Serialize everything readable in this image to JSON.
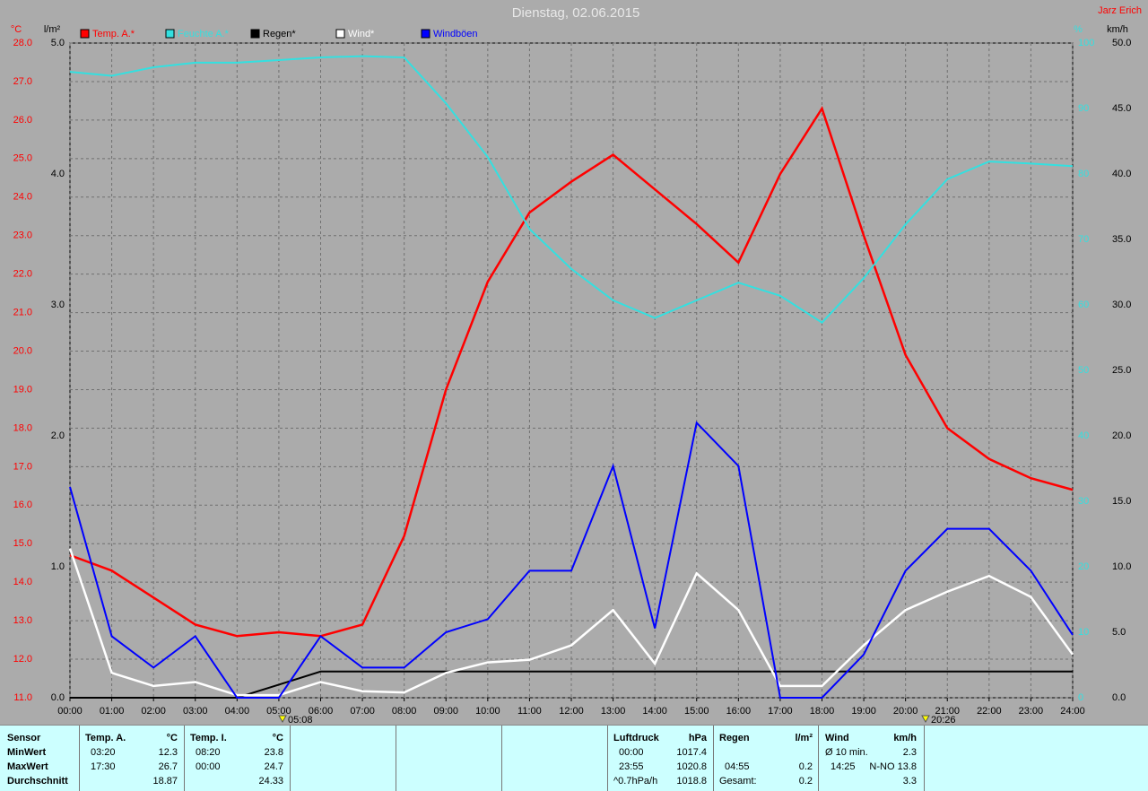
{
  "chart_data": {
    "type": "line",
    "title": "Dienstag, 02.06.2015",
    "author": "Jarz Erich",
    "x": [
      0,
      1,
      2,
      3,
      4,
      5,
      6,
      7,
      8,
      9,
      10,
      11,
      12,
      13,
      14,
      15,
      16,
      17,
      18,
      19,
      20,
      21,
      22,
      23,
      24
    ],
    "xlim": [
      0,
      24
    ],
    "xticks": [
      {
        "value": 0,
        "label": "00:00"
      },
      {
        "value": 1,
        "label": "01:00"
      },
      {
        "value": 2,
        "label": "02:00"
      },
      {
        "value": 3,
        "label": "03:00"
      },
      {
        "value": 4,
        "label": "04:00"
      },
      {
        "value": 5,
        "label": "05:00"
      },
      {
        "value": 6,
        "label": "06:00"
      },
      {
        "value": 7,
        "label": "07:00"
      },
      {
        "value": 8,
        "label": "08:00"
      },
      {
        "value": 9,
        "label": "09:00"
      },
      {
        "value": 10,
        "label": "10:00"
      },
      {
        "value": 11,
        "label": "11:00"
      },
      {
        "value": 12,
        "label": "12:00"
      },
      {
        "value": 13,
        "label": "13:00"
      },
      {
        "value": 14,
        "label": "14:00"
      },
      {
        "value": 15,
        "label": "15:00"
      },
      {
        "value": 16,
        "label": "16:00"
      },
      {
        "value": 17,
        "label": "17:00"
      },
      {
        "value": 18,
        "label": "18:00"
      },
      {
        "value": 19,
        "label": "19:00"
      },
      {
        "value": 20,
        "label": "20:00"
      },
      {
        "value": 21,
        "label": "21:00"
      },
      {
        "value": 22,
        "label": "22:00"
      },
      {
        "value": 23,
        "label": "23:00"
      },
      {
        "value": 24,
        "label": "24:00"
      }
    ],
    "ylabel": "°C",
    "ylim": [
      11,
      28
    ],
    "yticks": [
      {
        "value": 11,
        "label": "11.0"
      },
      {
        "value": 12,
        "label": "12.0"
      },
      {
        "value": 13,
        "label": "13.0"
      },
      {
        "value": 14,
        "label": "14.0"
      },
      {
        "value": 15,
        "label": "15.0"
      },
      {
        "value": 16,
        "label": "16.0"
      },
      {
        "value": 17,
        "label": "17.0"
      },
      {
        "value": 18,
        "label": "18.0"
      },
      {
        "value": 19,
        "label": "19.0"
      },
      {
        "value": 20,
        "label": "20.0"
      },
      {
        "value": 21,
        "label": "21.0"
      },
      {
        "value": 22,
        "label": "22.0"
      },
      {
        "value": 23,
        "label": "23.0"
      },
      {
        "value": 24,
        "label": "24.0"
      },
      {
        "value": 25,
        "label": "25.0"
      },
      {
        "value": 26,
        "label": "26.0"
      },
      {
        "value": 27,
        "label": "27.0"
      },
      {
        "value": 28,
        "label": "28.0"
      }
    ],
    "y2label": "l/m²",
    "y2lim": [
      0,
      5
    ],
    "y2ticks": [
      {
        "value": 0,
        "label": "0.0"
      },
      {
        "value": 1,
        "label": "1.0"
      },
      {
        "value": 2,
        "label": "2.0"
      },
      {
        "value": 3,
        "label": "3.0"
      },
      {
        "value": 4,
        "label": "4.0"
      },
      {
        "value": 5,
        "label": "5.0"
      }
    ],
    "y3label": "%",
    "y3lim": [
      0,
      100
    ],
    "y3ticks": [
      0,
      10,
      20,
      30,
      40,
      50,
      60,
      70,
      80,
      90,
      100
    ],
    "y4label": "km/h",
    "y4lim": [
      0,
      50
    ],
    "y4ticks": [
      {
        "value": 0,
        "label": "0.0"
      },
      {
        "value": 5,
        "label": "5.0"
      },
      {
        "value": 10,
        "label": "10.0"
      },
      {
        "value": 15,
        "label": "15.0"
      },
      {
        "value": 20,
        "label": "20.0"
      },
      {
        "value": 25,
        "label": "25.0"
      },
      {
        "value": 30,
        "label": "30.0"
      },
      {
        "value": 35,
        "label": "35.0"
      },
      {
        "value": 40,
        "label": "40.0"
      },
      {
        "value": 45,
        "label": "45.0"
      },
      {
        "value": 50,
        "label": "50.0"
      }
    ],
    "grid": true,
    "markers": [
      "05:08",
      "20:26"
    ],
    "series": [
      {
        "name": "Temp. A.*",
        "color": "#ff0000",
        "axis": "y",
        "values": [
          14.7,
          14.3,
          13.6,
          12.9,
          12.6,
          12.7,
          12.6,
          12.9,
          15.2,
          19.0,
          21.8,
          23.6,
          24.4,
          25.1,
          24.2,
          23.3,
          22.3,
          24.6,
          26.3,
          23.0,
          19.9,
          18.0,
          17.2,
          16.7,
          16.4
        ]
      },
      {
        "name": "Feuchte A.*",
        "color": "#33e0e0",
        "axis": "y3",
        "values": [
          95.6,
          95,
          96.3,
          97,
          97,
          97.4,
          97.8,
          98,
          97.8,
          90.8,
          82.6,
          71.6,
          65.5,
          60.7,
          58,
          60.7,
          63.4,
          61.4,
          57.3,
          64.1,
          72.3,
          79.2,
          81.9,
          81.6,
          81.2
        ]
      },
      {
        "name": "Regen*",
        "color": "#000000",
        "axis": "y2",
        "values": [
          0,
          0,
          0,
          0,
          0,
          0.1,
          0.2,
          0.2,
          0.2,
          0.2,
          0.2,
          0.2,
          0.2,
          0.2,
          0.2,
          0.2,
          0.2,
          0.2,
          0.2,
          0.2,
          0.2,
          0.2,
          0.2,
          0.2,
          0.2
        ]
      },
      {
        "name": "Wind*",
        "color": "#ffffff",
        "axis": "y4",
        "values": [
          11.4,
          1.9,
          0.9,
          1.2,
          0.2,
          0.2,
          1.2,
          0.5,
          0.4,
          1.9,
          2.7,
          2.9,
          4.0,
          6.7,
          2.6,
          9.5,
          6.7,
          0.9,
          0.9,
          4.0,
          6.7,
          8.1,
          9.3,
          7.7,
          3.3
        ]
      },
      {
        "name": "Windböen",
        "color": "#0000ff",
        "axis": "y4",
        "values": [
          16.1,
          4.7,
          2.3,
          4.7,
          0,
          0,
          4.7,
          2.3,
          2.3,
          5,
          6.0,
          9.7,
          9.7,
          17.7,
          5.3,
          21,
          17.7,
          0,
          0,
          3.3,
          9.7,
          12.9,
          12.9,
          9.7,
          4.8
        ]
      }
    ]
  },
  "stats": {
    "sensor": {
      "header": "Sensor",
      "rows": [
        "MinWert",
        "MaxWert",
        "Durchschnitt"
      ]
    },
    "temp_a": {
      "header": "Temp. A.",
      "unit": "°C",
      "min": [
        "03:20",
        "12.3"
      ],
      "max": [
        "17:30",
        "26.7"
      ],
      "avg": "18.87"
    },
    "temp_i": {
      "header": "Temp. I.",
      "unit": "°C",
      "min": [
        "08:20",
        "23.8"
      ],
      "max": [
        "00:00",
        "24.7"
      ],
      "avg": "24.33"
    },
    "pressure": {
      "header": "Luftdruck",
      "unit": "hPa",
      "min": [
        "00:00",
        "1017.4"
      ],
      "max": [
        "23:55",
        "1020.8"
      ],
      "trend": [
        "^0.7hPa/h",
        "1018.8"
      ]
    },
    "rain": {
      "header": "Regen",
      "unit": "l/m²",
      "max": [
        "04:55",
        "0.2"
      ],
      "total": [
        "Gesamt:",
        "0.2"
      ]
    },
    "wind": {
      "header": "Wind",
      "unit": "km/h",
      "avg": [
        "Ø 10 min.",
        "2.3"
      ],
      "max": [
        "14:25",
        "N-NO 13.8"
      ],
      "mean": "3.3"
    }
  }
}
